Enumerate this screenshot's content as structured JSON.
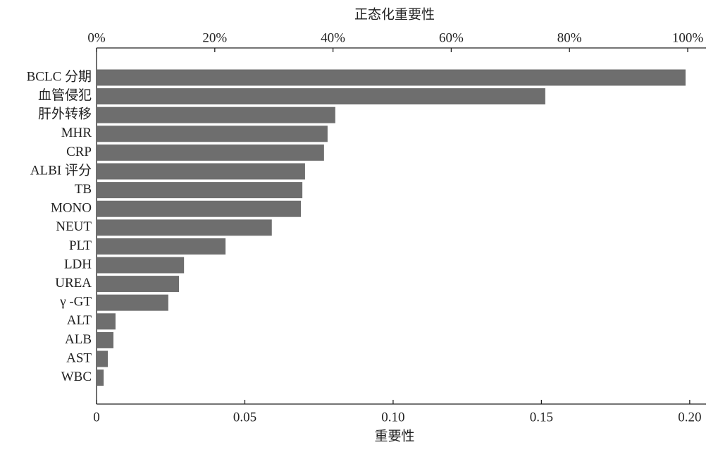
{
  "chart_data": {
    "type": "barh",
    "xlabel": "重要性",
    "x2label": "正态化重要性",
    "categories": [
      "BCLC 分期",
      "血管侵犯",
      "肝外转移",
      "MHR",
      "CRP",
      "ALBI 评分",
      "TB",
      "MONO",
      "NEUT",
      "PLT",
      "LDH",
      "UREA",
      "γ -GT",
      "ALT",
      "ALB",
      "AST",
      "WBC"
    ],
    "values": [
      0.1986,
      0.1513,
      0.0805,
      0.0779,
      0.0767,
      0.0703,
      0.0694,
      0.0689,
      0.0591,
      0.0435,
      0.0295,
      0.0278,
      0.0242,
      0.0064,
      0.0057,
      0.0038,
      0.0024
    ],
    "color": "#6e6e6e",
    "xlim": [
      0,
      0.2055
    ],
    "xticks": [
      0,
      0.05,
      {
        "value": 0.1,
        "label": "0.10"
      },
      0.15,
      {
        "value": 0.2,
        "label": "0.20"
      }
    ],
    "x2lim": [
      0,
      103.1
    ],
    "x2ticks": [
      {
        "value": 0,
        "label": "0%"
      },
      {
        "value": 20,
        "label": "20%"
      },
      {
        "value": 40,
        "label": "40%"
      },
      {
        "value": 60,
        "label": "60%"
      },
      {
        "value": 80,
        "label": "80%"
      },
      {
        "value": 100,
        "label": "100%"
      }
    ]
  }
}
